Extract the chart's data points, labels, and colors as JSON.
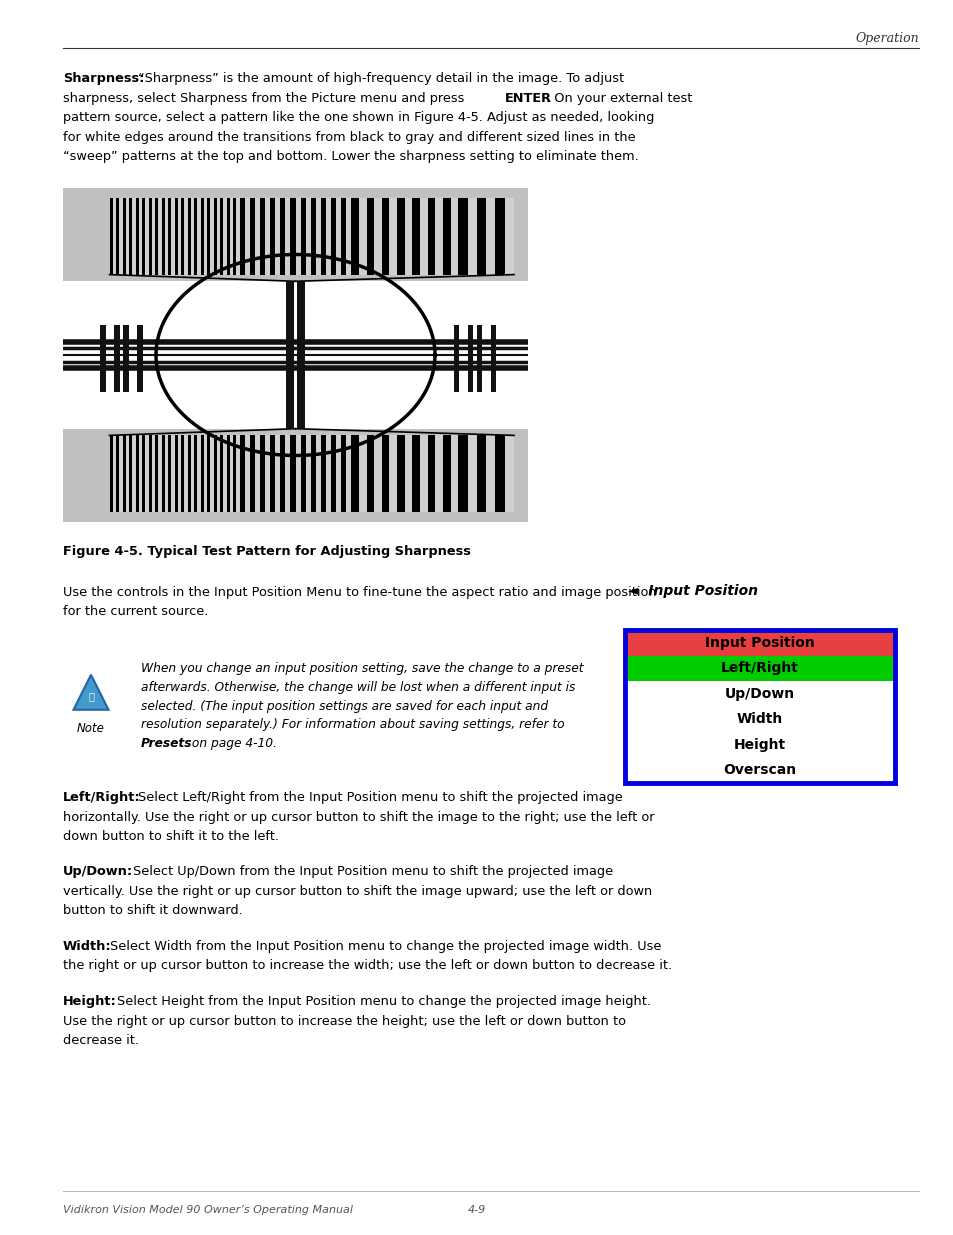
{
  "page_width": 9.54,
  "page_height": 12.35,
  "bg_color": "#ffffff",
  "header_italic": "Operation",
  "footer_left": "Vidikron Vision Model 90 Owner’s Operating Manual",
  "footer_right": "4-9",
  "sharpness_bold": "Sharpness:",
  "figure_caption": "Figure 4-5. Typical Test Pattern for Adjusting Sharpness",
  "input_position_label": "◄  Input Position",
  "menu_items": [
    "Input Position",
    "Left/Right",
    "Up/Down",
    "Width",
    "Height",
    "Overscan"
  ],
  "menu_colors": [
    "#e84040",
    "#00cc00",
    "#ffffff",
    "#ffffff",
    "#ffffff",
    "#ffffff"
  ],
  "menu_border_color": "#0000dd",
  "note_bold": "Note",
  "leftright_bold": "Left/Right:",
  "leftright_text1": " Select Left/Right from the Input Position menu to shift the projected image",
  "leftright_text2": "horizontally. Use the right or up cursor button to shift the image to the right; use the left or",
  "leftright_text3": "down button to shift it to the left.",
  "updown_bold": "Up/Down:",
  "updown_text1": " Select Up/Down from the Input Position menu to shift the projected image",
  "updown_text2": "vertically. Use the right or up cursor button to shift the image upward; use the left or down",
  "updown_text3": "button to shift it downward.",
  "width_bold": "Width:",
  "width_text1": " Select Width from the Input Position menu to change the projected image width. Use",
  "width_text2": "the right or up cursor button to increase the width; use the left or down button to decrease it.",
  "height_bold": "Height:",
  "height_text1": " Select Height from the Input Position menu to change the projected image height.",
  "height_text2": "Use the right or up cursor button to increase the height; use the left or down button to",
  "height_text3": "decrease it."
}
